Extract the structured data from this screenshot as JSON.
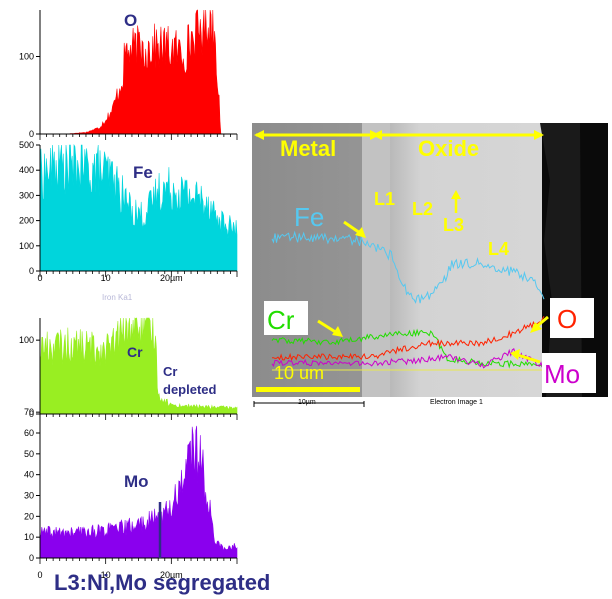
{
  "chart_data": [
    {
      "type": "line",
      "element": "O",
      "label": "O",
      "ylim": [
        0,
        160
      ],
      "yticks": [
        0,
        100
      ],
      "xlim": [
        0,
        30
      ],
      "color": "#ff0000",
      "profile": [
        [
          0,
          0
        ],
        [
          4,
          0
        ],
        [
          7,
          2
        ],
        [
          9,
          8
        ],
        [
          11,
          30
        ],
        [
          12.5,
          70
        ],
        [
          13,
          105
        ],
        [
          15,
          110
        ],
        [
          18,
          112
        ],
        [
          20,
          110
        ],
        [
          22,
          104
        ],
        [
          23,
          122
        ],
        [
          24.5,
          135
        ],
        [
          25.5,
          150
        ],
        [
          26.5,
          140
        ],
        [
          27.2,
          60
        ],
        [
          27.5,
          0
        ],
        [
          30,
          0
        ]
      ]
    },
    {
      "type": "line",
      "element": "Fe",
      "label": "Fe",
      "ylim": [
        0,
        500
      ],
      "yticks": [
        0,
        100,
        200,
        300,
        400,
        500
      ],
      "xlim": [
        0,
        30
      ],
      "xticks": [
        0,
        10,
        20
      ],
      "xticklabels": [
        "0",
        "10",
        "20µm"
      ],
      "color": "#00d5dc",
      "profile": [
        [
          0,
          380
        ],
        [
          3,
          420
        ],
        [
          6,
          410
        ],
        [
          9,
          400
        ],
        [
          11,
          370
        ],
        [
          12.5,
          300
        ],
        [
          14,
          240
        ],
        [
          15.5,
          220
        ],
        [
          16.5,
          240
        ],
        [
          18,
          320
        ],
        [
          20,
          330
        ],
        [
          22,
          310
        ],
        [
          24,
          290
        ],
        [
          26,
          270
        ],
        [
          27,
          200
        ],
        [
          28.5,
          180
        ],
        [
          30,
          160
        ]
      ]
    },
    {
      "type": "line",
      "element": "Cr",
      "label": "Cr",
      "sub_label": "Iron Ka1",
      "annotation": [
        "Cr",
        "depleted"
      ],
      "ylim": [
        0,
        130
      ],
      "yticks": [
        0,
        100
      ],
      "xlim": [
        0,
        30
      ],
      "color": "#99ee22",
      "profile": [
        [
          0,
          90
        ],
        [
          5,
          92
        ],
        [
          9,
          88
        ],
        [
          11,
          90
        ],
        [
          12.5,
          110
        ],
        [
          14,
          120
        ],
        [
          16,
          118
        ],
        [
          17.5,
          115
        ],
        [
          18,
          25
        ],
        [
          20,
          12
        ],
        [
          24,
          10
        ],
        [
          30,
          8
        ]
      ]
    },
    {
      "type": "line",
      "element": "Mo",
      "label": "Mo",
      "ylim": [
        0,
        72
      ],
      "yticks": [
        0,
        10,
        20,
        30,
        40,
        50,
        60,
        70
      ],
      "xlim": [
        0,
        30
      ],
      "xticks": [
        0,
        10,
        20
      ],
      "xticklabels": [
        "0",
        "10",
        "20µm"
      ],
      "color": "#8a00ee",
      "profile": [
        [
          0,
          12
        ],
        [
          5,
          12
        ],
        [
          9,
          13
        ],
        [
          12,
          14
        ],
        [
          15,
          16
        ],
        [
          17,
          18
        ],
        [
          18.5,
          20
        ],
        [
          20,
          24
        ],
        [
          21.5,
          36
        ],
        [
          22.5,
          48
        ],
        [
          23.5,
          52
        ],
        [
          24.5,
          46
        ],
        [
          25.5,
          30
        ],
        [
          26.5,
          10
        ],
        [
          28,
          4
        ],
        [
          30,
          6
        ]
      ]
    }
  ],
  "sem_image": {
    "regions": {
      "left": "Metal",
      "right": "Oxide"
    },
    "layers": [
      "L1",
      "L2",
      "L3",
      "L4"
    ],
    "scale_bar": "10 um",
    "micron_bar": "10µm",
    "caption": "Electron Image 1",
    "trace_labels": {
      "fe": "Fe",
      "cr": "Cr",
      "o": "O",
      "mo": "Mo"
    },
    "colors": {
      "fe": "#56c8f0",
      "cr": "#22dd00",
      "o": "#ff2200",
      "mo": "#cc00cc",
      "arrow": "#ffff00"
    }
  },
  "bottom_caption": "L3:Ni,Mo segregated"
}
